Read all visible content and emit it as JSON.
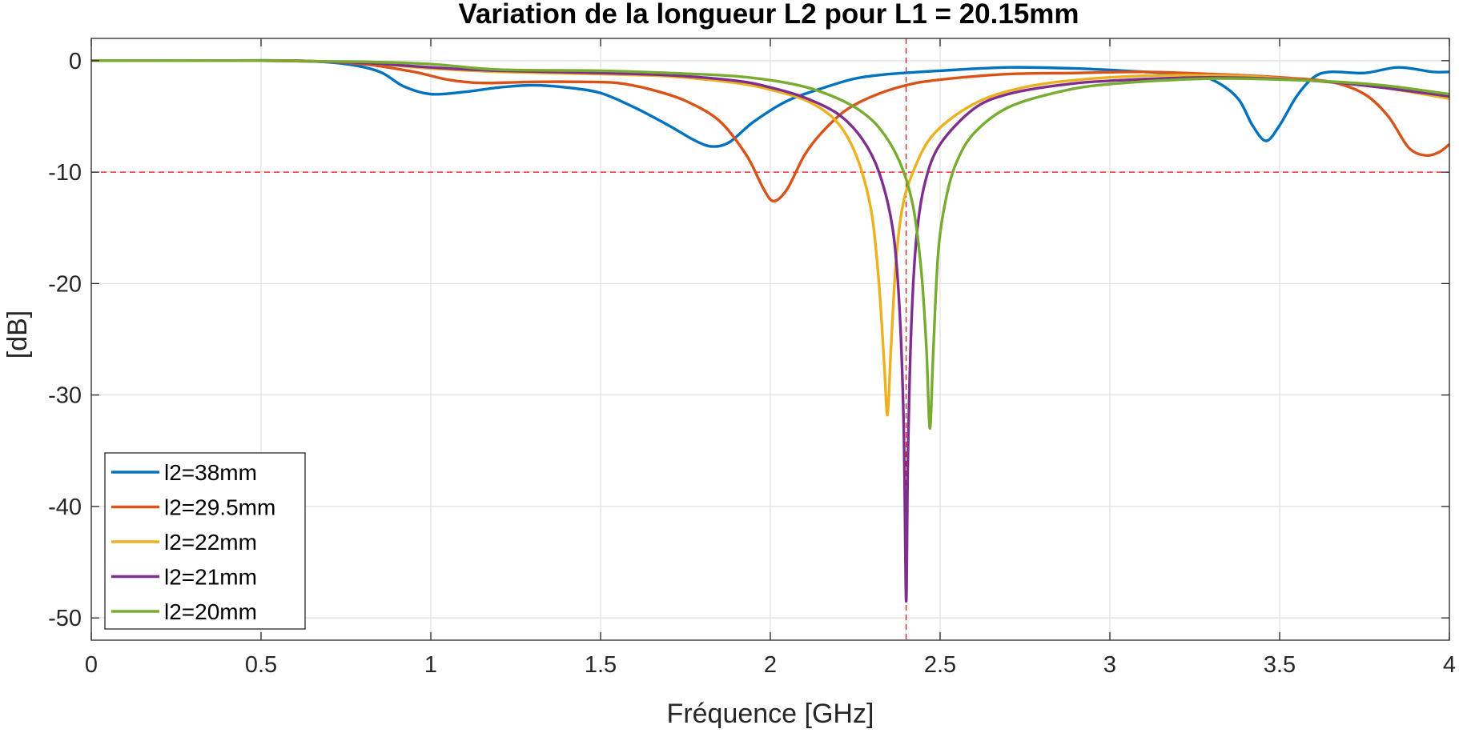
{
  "chart_data": {
    "type": "line",
    "title": "Variation de la longueur L2 pour L1 = 20.15mm",
    "xlabel": "Fréquence [GHz]",
    "ylabel": "[dB]",
    "xlim": [
      0,
      4
    ],
    "ylim": [
      -52,
      2
    ],
    "xticks": [
      0,
      0.5,
      1,
      1.5,
      2,
      2.5,
      3,
      3.5,
      4
    ],
    "xtick_labels": [
      "0",
      "0.5",
      "1",
      "1.5",
      "2",
      "2.5",
      "3",
      "3.5",
      "4"
    ],
    "yticks": [
      0,
      -10,
      -20,
      -30,
      -40,
      -50
    ],
    "ytick_labels": [
      "0",
      "-10",
      "-20",
      "-30",
      "-40",
      "-50"
    ],
    "grid": true,
    "legend_position": "bottom-left",
    "reference_lines": {
      "horizontal_y": -10,
      "vertical_x": 2.4,
      "color": "#ff0000",
      "style": "dashed"
    },
    "series": [
      {
        "name": "l2=38mm",
        "color": "#0072BD",
        "points": [
          [
            0,
            0
          ],
          [
            0.3,
            0
          ],
          [
            0.6,
            0
          ],
          [
            0.75,
            -0.3
          ],
          [
            0.85,
            -1
          ],
          [
            0.92,
            -2.3
          ],
          [
            1,
            -3
          ],
          [
            1.1,
            -2.8
          ],
          [
            1.2,
            -2.4
          ],
          [
            1.3,
            -2.2
          ],
          [
            1.4,
            -2.4
          ],
          [
            1.5,
            -2.9
          ],
          [
            1.6,
            -4.2
          ],
          [
            1.7,
            -5.8
          ],
          [
            1.78,
            -7.2
          ],
          [
            1.83,
            -7.7
          ],
          [
            1.88,
            -7.3
          ],
          [
            1.95,
            -5.5
          ],
          [
            2.05,
            -3.6
          ],
          [
            2.15,
            -2.5
          ],
          [
            2.25,
            -1.6
          ],
          [
            2.35,
            -1.2
          ],
          [
            2.5,
            -0.9
          ],
          [
            2.7,
            -0.6
          ],
          [
            2.9,
            -0.7
          ],
          [
            3.1,
            -1
          ],
          [
            3.25,
            -1.3
          ],
          [
            3.32,
            -2
          ],
          [
            3.38,
            -3.5
          ],
          [
            3.42,
            -5.8
          ],
          [
            3.46,
            -7.2
          ],
          [
            3.5,
            -5.8
          ],
          [
            3.55,
            -3.2
          ],
          [
            3.6,
            -1.5
          ],
          [
            3.65,
            -1
          ],
          [
            3.75,
            -1.1
          ],
          [
            3.85,
            -0.6
          ],
          [
            3.95,
            -1
          ],
          [
            4,
            -1
          ]
        ]
      },
      {
        "name": "l2=29.5mm",
        "color": "#D95319",
        "points": [
          [
            0,
            0
          ],
          [
            0.3,
            0
          ],
          [
            0.6,
            0
          ],
          [
            0.8,
            -0.3
          ],
          [
            0.95,
            -1
          ],
          [
            1.05,
            -1.7
          ],
          [
            1.15,
            -2
          ],
          [
            1.3,
            -1.9
          ],
          [
            1.45,
            -1.9
          ],
          [
            1.55,
            -2
          ],
          [
            1.65,
            -2.6
          ],
          [
            1.75,
            -3.6
          ],
          [
            1.85,
            -5.4
          ],
          [
            1.93,
            -8.5
          ],
          [
            1.98,
            -11.5
          ],
          [
            2.01,
            -12.6
          ],
          [
            2.05,
            -11.5
          ],
          [
            2.1,
            -8.5
          ],
          [
            2.15,
            -6.5
          ],
          [
            2.22,
            -4.5
          ],
          [
            2.3,
            -3.2
          ],
          [
            2.4,
            -2.2
          ],
          [
            2.5,
            -1.7
          ],
          [
            2.7,
            -1.2
          ],
          [
            2.9,
            -1.1
          ],
          [
            3.1,
            -1
          ],
          [
            3.3,
            -1.2
          ],
          [
            3.5,
            -1.5
          ],
          [
            3.65,
            -1.9
          ],
          [
            3.75,
            -3
          ],
          [
            3.82,
            -5
          ],
          [
            3.88,
            -7.8
          ],
          [
            3.93,
            -8.5
          ],
          [
            3.97,
            -8.2
          ],
          [
            4,
            -7.5
          ]
        ]
      },
      {
        "name": "l2=22mm",
        "color": "#EDB120",
        "points": [
          [
            0,
            0
          ],
          [
            0.5,
            0
          ],
          [
            0.8,
            -0.2
          ],
          [
            1,
            -0.7
          ],
          [
            1.2,
            -1
          ],
          [
            1.5,
            -1.2
          ],
          [
            1.7,
            -1.4
          ],
          [
            1.9,
            -2
          ],
          [
            2,
            -2.6
          ],
          [
            2.1,
            -3.5
          ],
          [
            2.18,
            -5
          ],
          [
            2.23,
            -7
          ],
          [
            2.27,
            -10
          ],
          [
            2.3,
            -14
          ],
          [
            2.32,
            -20
          ],
          [
            2.335,
            -27
          ],
          [
            2.345,
            -31.8
          ],
          [
            2.355,
            -26
          ],
          [
            2.37,
            -18
          ],
          [
            2.39,
            -13
          ],
          [
            2.42,
            -10
          ],
          [
            2.47,
            -7
          ],
          [
            2.55,
            -4.8
          ],
          [
            2.65,
            -3.2
          ],
          [
            2.8,
            -2.1
          ],
          [
            3,
            -1.5
          ],
          [
            3.2,
            -1.3
          ],
          [
            3.4,
            -1.4
          ],
          [
            3.6,
            -1.8
          ],
          [
            3.8,
            -2.4
          ],
          [
            4,
            -3.4
          ]
        ]
      },
      {
        "name": "l2=21mm",
        "color": "#7E2F8E",
        "points": [
          [
            0,
            0
          ],
          [
            0.5,
            0
          ],
          [
            0.8,
            -0.2
          ],
          [
            1,
            -0.6
          ],
          [
            1.2,
            -0.9
          ],
          [
            1.5,
            -1.1
          ],
          [
            1.7,
            -1.3
          ],
          [
            1.9,
            -1.8
          ],
          [
            2,
            -2.4
          ],
          [
            2.1,
            -3.3
          ],
          [
            2.2,
            -4.8
          ],
          [
            2.27,
            -7
          ],
          [
            2.32,
            -10
          ],
          [
            2.36,
            -15
          ],
          [
            2.38,
            -22
          ],
          [
            2.393,
            -33
          ],
          [
            2.4,
            -48.5
          ],
          [
            2.405,
            -36
          ],
          [
            2.415,
            -24
          ],
          [
            2.43,
            -16
          ],
          [
            2.455,
            -11
          ],
          [
            2.5,
            -7.5
          ],
          [
            2.6,
            -4.3
          ],
          [
            2.7,
            -3
          ],
          [
            2.85,
            -2.2
          ],
          [
            3,
            -1.8
          ],
          [
            3.3,
            -1.5
          ],
          [
            3.6,
            -1.8
          ],
          [
            3.8,
            -2.4
          ],
          [
            4,
            -3.2
          ]
        ]
      },
      {
        "name": "l2=20mm",
        "color": "#77AC30",
        "points": [
          [
            0,
            0
          ],
          [
            0.5,
            0
          ],
          [
            0.8,
            -0.1
          ],
          [
            1,
            -0.3
          ],
          [
            1.2,
            -0.8
          ],
          [
            1.5,
            -0.9
          ],
          [
            1.7,
            -1.1
          ],
          [
            1.9,
            -1.4
          ],
          [
            2.05,
            -2
          ],
          [
            2.15,
            -2.8
          ],
          [
            2.25,
            -4.2
          ],
          [
            2.32,
            -6
          ],
          [
            2.38,
            -9
          ],
          [
            2.42,
            -13
          ],
          [
            2.445,
            -19
          ],
          [
            2.46,
            -26
          ],
          [
            2.47,
            -33
          ],
          [
            2.48,
            -26
          ],
          [
            2.495,
            -17
          ],
          [
            2.52,
            -12
          ],
          [
            2.55,
            -9
          ],
          [
            2.6,
            -6.5
          ],
          [
            2.7,
            -4.2
          ],
          [
            2.85,
            -2.8
          ],
          [
            3,
            -2.1
          ],
          [
            3.3,
            -1.6
          ],
          [
            3.6,
            -1.8
          ],
          [
            3.8,
            -2.2
          ],
          [
            4,
            -3
          ]
        ]
      }
    ]
  }
}
